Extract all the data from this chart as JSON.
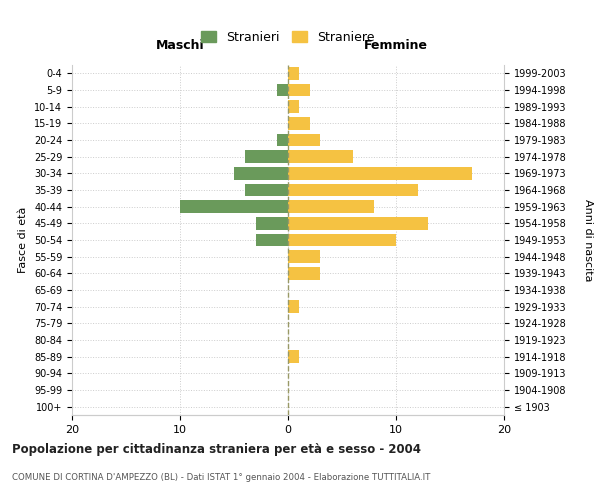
{
  "age_groups": [
    "100+",
    "95-99",
    "90-94",
    "85-89",
    "80-84",
    "75-79",
    "70-74",
    "65-69",
    "60-64",
    "55-59",
    "50-54",
    "45-49",
    "40-44",
    "35-39",
    "30-34",
    "25-29",
    "20-24",
    "15-19",
    "10-14",
    "5-9",
    "0-4"
  ],
  "birth_years": [
    "≤ 1903",
    "1904-1908",
    "1909-1913",
    "1914-1918",
    "1919-1923",
    "1924-1928",
    "1929-1933",
    "1934-1938",
    "1939-1943",
    "1944-1948",
    "1949-1953",
    "1954-1958",
    "1959-1963",
    "1964-1968",
    "1969-1973",
    "1974-1978",
    "1979-1983",
    "1984-1988",
    "1989-1993",
    "1994-1998",
    "1999-2003"
  ],
  "maschi_values": [
    0,
    0,
    0,
    0,
    0,
    0,
    0,
    0,
    0,
    0,
    3,
    3,
    10,
    4,
    5,
    4,
    1,
    0,
    0,
    1,
    0
  ],
  "femmine_values": [
    0,
    0,
    0,
    1,
    0,
    0,
    1,
    0,
    3,
    3,
    10,
    13,
    8,
    12,
    17,
    6,
    3,
    2,
    1,
    2,
    1
  ],
  "maschi_color": "#6a9a5b",
  "femmine_color": "#f5c242",
  "title": "Popolazione per cittadinanza straniera per età e sesso - 2004",
  "subtitle": "COMUNE DI CORTINA D'AMPEZZO (BL) - Dati ISTAT 1° gennaio 2004 - Elaborazione TUTTITALIA.IT",
  "xlabel_left": "Maschi",
  "xlabel_right": "Femmine",
  "ylabel_left": "Fasce di età",
  "ylabel_right": "Anni di nascita",
  "legend_stranieri": "Stranieri",
  "legend_straniere": "Straniere",
  "xlim": 20,
  "background_color": "#ffffff",
  "grid_color": "#cccccc"
}
